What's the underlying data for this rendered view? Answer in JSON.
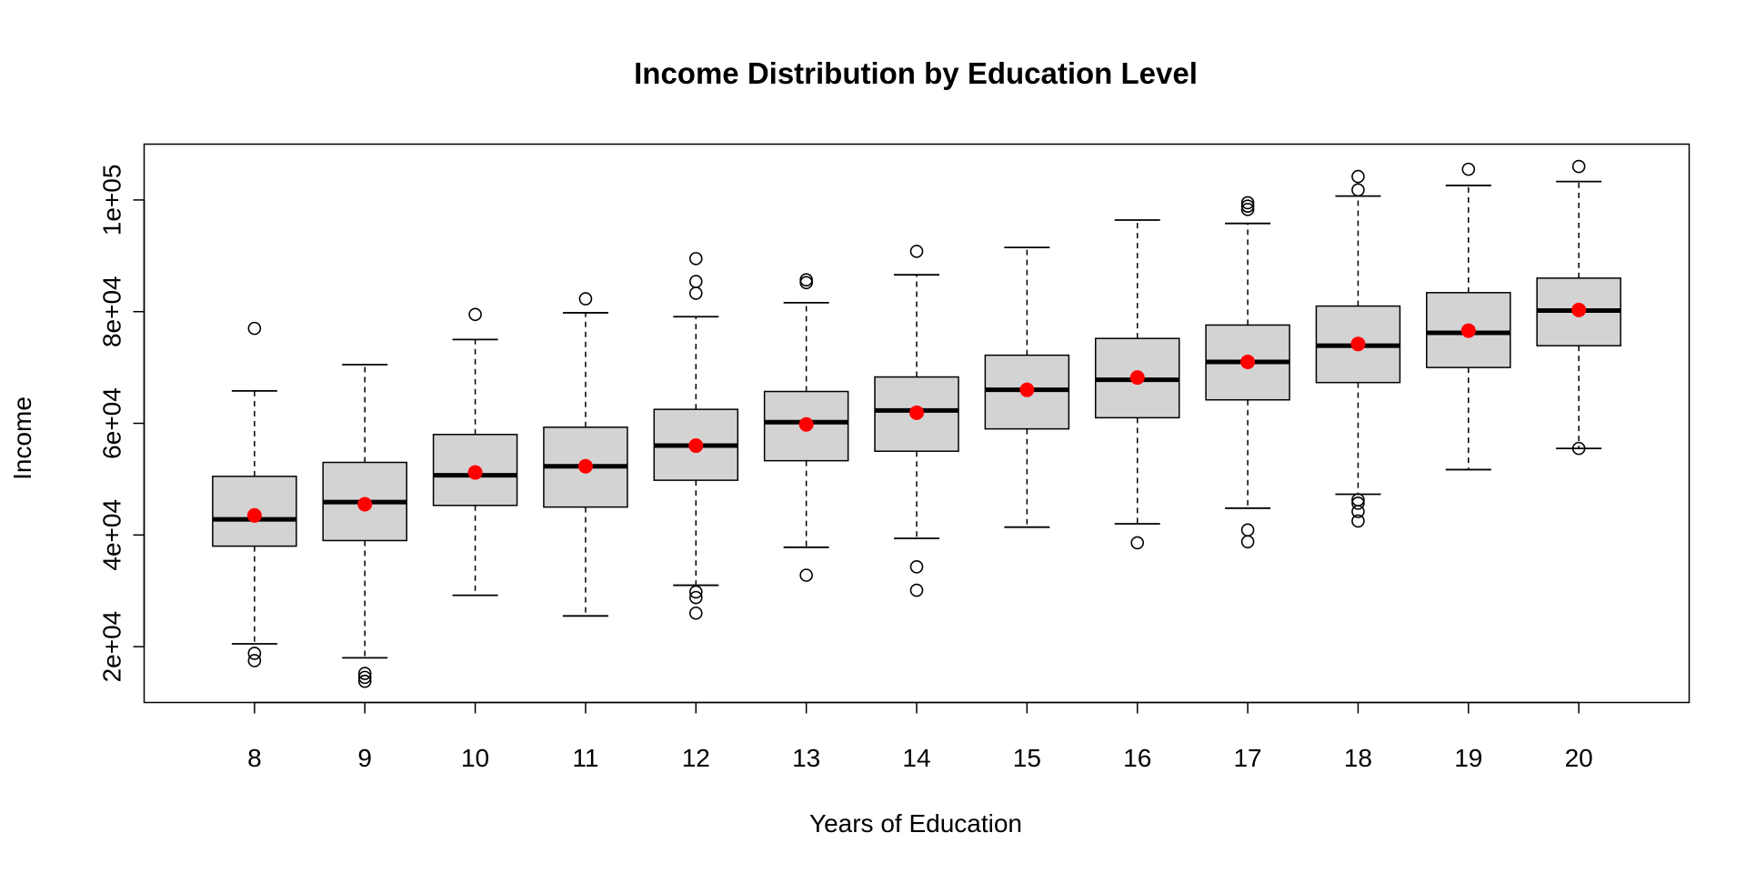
{
  "chart_data": {
    "type": "boxplot",
    "title": "Income Distribution by Education Level",
    "xlabel": "Years of Education",
    "ylabel": "Income",
    "categories": [
      "8",
      "9",
      "10",
      "11",
      "12",
      "13",
      "14",
      "15",
      "16",
      "17",
      "18",
      "19",
      "20"
    ],
    "y_ticks": [
      {
        "value": 20000,
        "label": "2e+04"
      },
      {
        "value": 40000,
        "label": "4e+04"
      },
      {
        "value": 60000,
        "label": "6e+04"
      },
      {
        "value": 80000,
        "label": "8e+04"
      },
      {
        "value": 100000,
        "label": "1e+05"
      }
    ],
    "ylim": [
      10000,
      110000
    ],
    "xlim": [
      7,
      21
    ],
    "boxes": [
      {
        "x": 8,
        "whisker_low": 20500,
        "q1": 38000,
        "median": 42800,
        "q3": 50500,
        "whisker_high": 65800,
        "mean": 43500,
        "outliers": [
          77000,
          18800,
          17500
        ]
      },
      {
        "x": 9,
        "whisker_low": 18000,
        "q1": 39000,
        "median": 45900,
        "q3": 53000,
        "whisker_high": 70500,
        "mean": 45500,
        "outliers": [
          15200,
          14500,
          13800
        ]
      },
      {
        "x": 10,
        "whisker_low": 29200,
        "q1": 45300,
        "median": 50700,
        "q3": 58000,
        "whisker_high": 75000,
        "mean": 51200,
        "outliers": [
          79500
        ]
      },
      {
        "x": 11,
        "whisker_low": 25500,
        "q1": 45000,
        "median": 52300,
        "q3": 59300,
        "whisker_high": 79800,
        "mean": 52300,
        "outliers": [
          82300
        ]
      },
      {
        "x": 12,
        "whisker_low": 31000,
        "q1": 49800,
        "median": 56000,
        "q3": 62500,
        "whisker_high": 79100,
        "mean": 56000,
        "outliers": [
          89500,
          85400,
          83300,
          29800,
          28800,
          26000
        ]
      },
      {
        "x": 13,
        "whisker_low": 37800,
        "q1": 53300,
        "median": 60200,
        "q3": 65700,
        "whisker_high": 81600,
        "mean": 59800,
        "outliers": [
          85700,
          85200,
          32800
        ]
      },
      {
        "x": 14,
        "whisker_low": 39400,
        "q1": 55000,
        "median": 62300,
        "q3": 68300,
        "whisker_high": 86600,
        "mean": 61900,
        "outliers": [
          90800,
          34300,
          30100
        ]
      },
      {
        "x": 15,
        "whisker_low": 41400,
        "q1": 59000,
        "median": 66000,
        "q3": 72200,
        "whisker_high": 91500,
        "mean": 66000,
        "outliers": []
      },
      {
        "x": 16,
        "whisker_low": 42000,
        "q1": 61000,
        "median": 67800,
        "q3": 75200,
        "whisker_high": 96400,
        "mean": 68200,
        "outliers": [
          38600
        ]
      },
      {
        "x": 17,
        "whisker_low": 44800,
        "q1": 64200,
        "median": 71000,
        "q3": 77600,
        "whisker_high": 95800,
        "mean": 71000,
        "outliers": [
          99500,
          98900,
          98300,
          40900,
          38800
        ]
      },
      {
        "x": 18,
        "whisker_low": 47300,
        "q1": 67300,
        "median": 73900,
        "q3": 81000,
        "whisker_high": 100700,
        "mean": 74200,
        "outliers": [
          104200,
          101800,
          46300,
          45700,
          44200,
          42500
        ]
      },
      {
        "x": 19,
        "whisker_low": 51700,
        "q1": 70000,
        "median": 76200,
        "q3": 83400,
        "whisker_high": 102600,
        "mean": 76600,
        "outliers": [
          105500
        ]
      },
      {
        "x": 20,
        "whisker_low": 55500,
        "q1": 73900,
        "median": 80200,
        "q3": 86000,
        "whisker_high": 103300,
        "mean": 80300,
        "outliers": [
          106000,
          55500
        ]
      }
    ],
    "box_fill": "#d3d3d3",
    "mean_color": "#ff0000",
    "grid": false,
    "legend": "none"
  }
}
